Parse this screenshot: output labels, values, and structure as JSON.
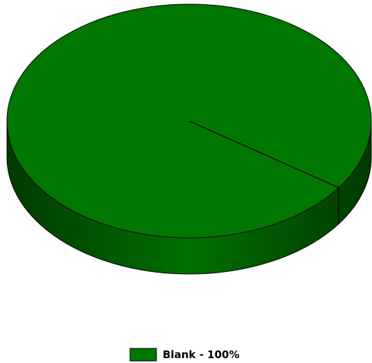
{
  "chart_data": {
    "type": "pie",
    "categories": [
      "Blank"
    ],
    "values": [
      100
    ],
    "value_labels": [
      "100%"
    ],
    "colors": [
      "#007800"
    ],
    "legend": "bottom"
  }
}
